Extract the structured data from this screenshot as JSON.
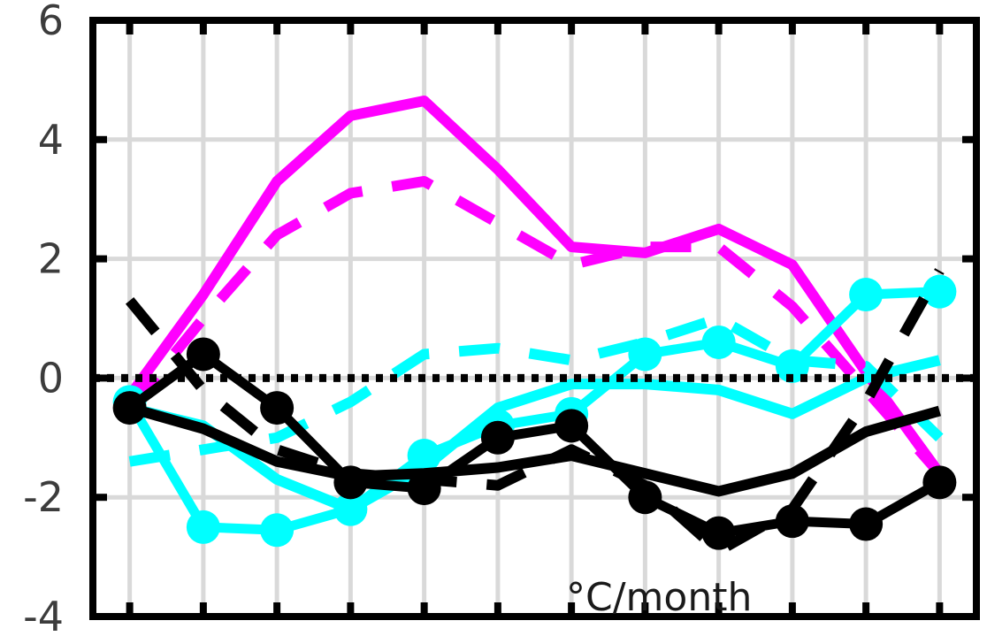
{
  "chart_data": {
    "type": "line",
    "x": [
      1,
      2,
      3,
      4,
      5,
      6,
      7,
      8,
      9,
      10,
      11,
      12
    ],
    "xlim": [
      0.5,
      12.5
    ],
    "ylim": [
      -4,
      6
    ],
    "yticks": [
      -4,
      -2,
      0,
      2,
      4,
      6
    ],
    "ytick_labels": [
      "-4",
      "-2",
      "0",
      "2",
      "4",
      "6"
    ],
    "grid": true,
    "annotation": "°C/month",
    "zero_line": {
      "value": 0,
      "style": "dotted",
      "color": "#000000"
    },
    "series": [
      {
        "color": "#ff00ff",
        "style": "solid",
        "marker": false,
        "values": [
          -0.3,
          1.4,
          3.3,
          4.4,
          4.65,
          3.5,
          2.2,
          2.1,
          2.5,
          1.9,
          0.1,
          -1.6
        ]
      },
      {
        "color": "#ff00ff",
        "style": "dashed",
        "marker": false,
        "values": [
          -0.5,
          1.0,
          2.4,
          3.1,
          3.3,
          2.6,
          1.9,
          2.2,
          2.2,
          1.2,
          -0.2,
          -1.6
        ]
      },
      {
        "color": "#00ffff",
        "style": "solid",
        "marker": false,
        "values": [
          -0.5,
          -0.8,
          -1.7,
          -2.2,
          -1.5,
          -0.5,
          -0.1,
          -0.1,
          -0.2,
          -0.6,
          0.0,
          0.3
        ]
      },
      {
        "color": "#00ffff",
        "style": "dashed",
        "marker": false,
        "values": [
          -1.4,
          -1.2,
          -1.0,
          -0.4,
          0.4,
          0.5,
          0.3,
          0.6,
          1.0,
          0.3,
          0.2,
          -1.0
        ]
      },
      {
        "color": "#00ffff",
        "style": "solid",
        "marker": true,
        "values": [
          -0.4,
          -2.5,
          -2.55,
          -2.2,
          -1.3,
          -0.8,
          -0.6,
          0.4,
          0.6,
          0.2,
          1.4,
          1.45
        ]
      },
      {
        "color": "#000000",
        "style": "solid",
        "marker": false,
        "values": [
          -0.5,
          -0.85,
          -1.4,
          -1.65,
          -1.6,
          -1.5,
          -1.3,
          -1.6,
          -1.9,
          -1.6,
          -0.9,
          -0.55
        ]
      },
      {
        "color": "#000000",
        "style": "dashed",
        "marker": false,
        "values": [
          1.3,
          -0.2,
          -1.2,
          -1.6,
          -1.7,
          -1.8,
          -1.2,
          -1.8,
          -2.9,
          -2.2,
          -0.4,
          1.8
        ]
      },
      {
        "color": "#000000",
        "style": "solid",
        "marker": true,
        "values": [
          -0.5,
          0.4,
          -0.5,
          -1.75,
          -1.85,
          -1.0,
          -0.8,
          -2.0,
          -2.6,
          -2.4,
          -2.45,
          -1.75
        ]
      }
    ]
  }
}
